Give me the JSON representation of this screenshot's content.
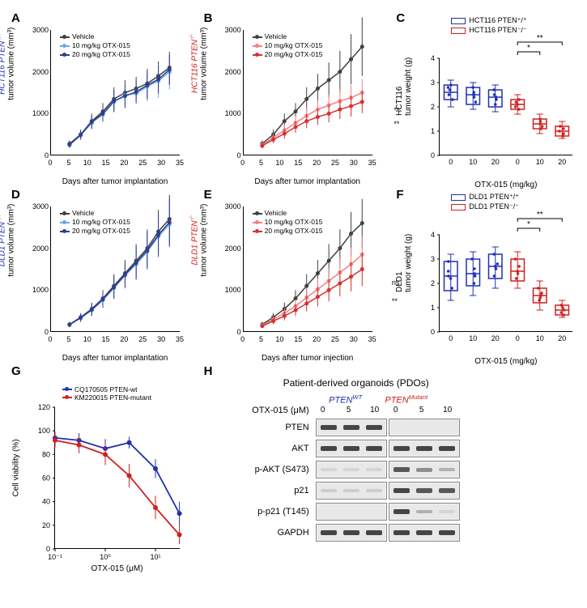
{
  "colors": {
    "vehicle": "#404040",
    "blue_mid": "#6ba8e8",
    "blue_dark": "#2c3e95",
    "red_mid": "#f08080",
    "red_dark": "#d63030",
    "pten_wt": "#2030b0",
    "pten_null": "#d02020"
  },
  "panelA": {
    "label": "A",
    "ylabel_color": "#2030b0",
    "ylabel_part1": "HCT116 PTEN",
    "ylabel_sup": "+/+",
    "ylabel_part2": "tumor volume (mm³)",
    "xlabel": "Days after tumor implantation",
    "xlim": [
      0,
      35
    ],
    "xtick_step": 5,
    "ylim": [
      0,
      3000
    ],
    "ytick_step": 1000,
    "legend": [
      {
        "label": "Vehicle",
        "color": "#404040"
      },
      {
        "label": "10 mg/kg OTX-015",
        "color": "#6ba8e8"
      },
      {
        "label": "20 mg/kg OTX-015",
        "color": "#2c3e95"
      }
    ],
    "series": [
      {
        "color": "#404040",
        "x": [
          5,
          8,
          11,
          14,
          17,
          20,
          23,
          26,
          29,
          32
        ],
        "y": [
          280,
          500,
          820,
          1050,
          1350,
          1500,
          1600,
          1720,
          1900,
          2100
        ],
        "err": [
          80,
          120,
          180,
          200,
          280,
          300,
          280,
          350,
          350,
          380
        ]
      },
      {
        "color": "#6ba8e8",
        "x": [
          5,
          8,
          11,
          14,
          17,
          20,
          23,
          26,
          29,
          32
        ],
        "y": [
          250,
          480,
          780,
          980,
          1280,
          1450,
          1480,
          1650,
          1780,
          2000
        ],
        "err": [
          70,
          100,
          150,
          180,
          250,
          280,
          250,
          350,
          400,
          420
        ]
      },
      {
        "color": "#2c3e95",
        "x": [
          5,
          8,
          11,
          14,
          17,
          20,
          23,
          26,
          29,
          32
        ],
        "y": [
          260,
          490,
          800,
          1000,
          1300,
          1420,
          1520,
          1680,
          1820,
          2050
        ],
        "err": [
          75,
          110,
          160,
          190,
          260,
          290,
          260,
          330,
          340,
          360
        ]
      }
    ]
  },
  "panelB": {
    "label": "B",
    "ylabel_color": "#d02020",
    "ylabel_part1": "HCT116 PTEN",
    "ylabel_sup": "-/-",
    "ylabel_part2": "tumor volume (mm³)",
    "xlabel": "Days after tumor implantation",
    "xlim": [
      0,
      35
    ],
    "xtick_step": 5,
    "ylim": [
      0,
      3000
    ],
    "ytick_step": 1000,
    "legend": [
      {
        "label": "Vehicle",
        "color": "#404040"
      },
      {
        "label": "10 mg/kg OTX-015",
        "color": "#f08080"
      },
      {
        "label": "20 mg/kg OTX-015",
        "color": "#d63030"
      }
    ],
    "series": [
      {
        "color": "#404040",
        "x": [
          5,
          8,
          11,
          14,
          17,
          20,
          23,
          26,
          29,
          32
        ],
        "y": [
          280,
          500,
          820,
          1050,
          1350,
          1600,
          1800,
          2000,
          2300,
          2600
        ],
        "err": [
          80,
          120,
          180,
          200,
          280,
          350,
          420,
          500,
          600,
          700
        ]
      },
      {
        "color": "#f08080",
        "x": [
          5,
          8,
          11,
          14,
          17,
          20,
          23,
          26,
          29,
          32
        ],
        "y": [
          250,
          420,
          600,
          780,
          950,
          1100,
          1200,
          1300,
          1380,
          1500
        ],
        "err": [
          70,
          100,
          140,
          160,
          200,
          220,
          250,
          280,
          300,
          320
        ]
      },
      {
        "color": "#d63030",
        "x": [
          5,
          8,
          11,
          14,
          17,
          20,
          23,
          26,
          29,
          32
        ],
        "y": [
          230,
          380,
          520,
          680,
          820,
          920,
          1000,
          1100,
          1180,
          1280
        ],
        "err": [
          60,
          90,
          120,
          140,
          170,
          190,
          210,
          230,
          250,
          270
        ]
      }
    ],
    "sig": [
      "**",
      "**"
    ]
  },
  "panelC": {
    "label": "C",
    "ylabel": "HCT116\ntumor weight (g)",
    "xlabel": "OTX-015  (mg/kg)",
    "xlabels": [
      "0",
      "10",
      "20",
      "0",
      "10",
      "20"
    ],
    "ylim": [
      0,
      4
    ],
    "ytick_step": 1,
    "legend": [
      {
        "label": "HCT116 PTEN⁺/⁺",
        "color": "#2030b0"
      },
      {
        "label": "HCT116 PTEN⁻/⁻",
        "color": "#d02020"
      }
    ],
    "boxes": [
      {
        "color": "#2030b0",
        "median": 2.6,
        "q1": 2.3,
        "q3": 2.9,
        "min": 2.0,
        "max": 3.1,
        "points": [
          2.5,
          2.7,
          2.8,
          2.3,
          2.9
        ]
      },
      {
        "color": "#2030b0",
        "median": 2.5,
        "q1": 2.1,
        "q3": 2.8,
        "min": 1.9,
        "max": 3.0,
        "points": [
          2.4,
          2.6,
          2.2,
          2.8,
          2.5
        ]
      },
      {
        "color": "#2030b0",
        "median": 2.4,
        "q1": 2.0,
        "q3": 2.7,
        "min": 1.8,
        "max": 2.9,
        "points": [
          2.3,
          2.5,
          2.1,
          2.7,
          2.4
        ]
      },
      {
        "color": "#d02020",
        "median": 2.1,
        "q1": 1.9,
        "q3": 2.3,
        "min": 1.7,
        "max": 2.5,
        "points": [
          2.0,
          2.2,
          1.9,
          2.3,
          2.1
        ]
      },
      {
        "color": "#d02020",
        "median": 1.3,
        "q1": 1.1,
        "q3": 1.5,
        "min": 0.9,
        "max": 1.7,
        "points": [
          1.2,
          1.4,
          1.1,
          1.5,
          1.3
        ]
      },
      {
        "color": "#d02020",
        "median": 1.0,
        "q1": 0.8,
        "q3": 1.2,
        "min": 0.7,
        "max": 1.4,
        "points": [
          0.9,
          1.1,
          0.8,
          1.2,
          1.0
        ]
      }
    ],
    "sig": [
      {
        "label": "*",
        "from": 3,
        "to": 4
      },
      {
        "label": "**",
        "from": 3,
        "to": 5
      }
    ]
  },
  "panelD": {
    "label": "D",
    "ylabel_color": "#2030b0",
    "ylabel_part1": "DLD1 PTEN",
    "ylabel_sup": "+/+",
    "ylabel_part2": "tumor volume (mm³)",
    "xlabel": "Days after tumor implantation",
    "xlim": [
      0,
      35
    ],
    "xtick_step": 5,
    "ylim": [
      0,
      3000
    ],
    "ytick_step": 1000,
    "legend": [
      {
        "label": "Vehicle",
        "color": "#404040"
      },
      {
        "label": "10 mg/kg OTX-015",
        "color": "#6ba8e8"
      },
      {
        "label": "20 mg/kg OTX-015",
        "color": "#2c3e95"
      }
    ],
    "series": [
      {
        "color": "#404040",
        "x": [
          5,
          8,
          11,
          14,
          17,
          20,
          23,
          26,
          29,
          32
        ],
        "y": [
          180,
          350,
          550,
          800,
          1100,
          1400,
          1700,
          2000,
          2400,
          2700
        ],
        "err": [
          60,
          100,
          150,
          200,
          280,
          320,
          400,
          450,
          520,
          580
        ]
      },
      {
        "color": "#6ba8e8",
        "x": [
          5,
          8,
          11,
          14,
          17,
          20,
          23,
          26,
          29,
          32
        ],
        "y": [
          170,
          330,
          520,
          760,
          1050,
          1350,
          1620,
          1920,
          2280,
          2580
        ],
        "err": [
          55,
          95,
          140,
          190,
          270,
          310,
          380,
          430,
          500,
          560
        ]
      },
      {
        "color": "#2c3e95",
        "x": [
          5,
          8,
          11,
          14,
          17,
          20,
          23,
          26,
          29,
          32
        ],
        "y": [
          175,
          340,
          530,
          780,
          1070,
          1370,
          1650,
          1950,
          2320,
          2620
        ],
        "err": [
          58,
          98,
          145,
          195,
          275,
          315,
          390,
          440,
          510,
          570
        ]
      }
    ]
  },
  "panelE": {
    "label": "E",
    "ylabel_color": "#d02020",
    "ylabel_part1": "DLD1 PTEN",
    "ylabel_sup": "-/-",
    "ylabel_part2": "tumor volume (mm³)",
    "xlabel": "Days after tumor injection",
    "xlim": [
      0,
      35
    ],
    "xtick_step": 5,
    "ylim": [
      0,
      3000
    ],
    "ytick_step": 1000,
    "legend": [
      {
        "label": "Vehicle",
        "color": "#404040"
      },
      {
        "label": "10 mg/kg OTX-015",
        "color": "#f08080"
      },
      {
        "label": "20 mg/kg OTX-015",
        "color": "#d63030"
      }
    ],
    "series": [
      {
        "color": "#404040",
        "x": [
          5,
          8,
          11,
          14,
          17,
          20,
          23,
          26,
          29,
          32
        ],
        "y": [
          180,
          350,
          550,
          800,
          1100,
          1400,
          1700,
          2000,
          2350,
          2600
        ],
        "err": [
          60,
          100,
          150,
          200,
          280,
          320,
          400,
          450,
          520,
          580
        ]
      },
      {
        "color": "#f08080",
        "x": [
          5,
          8,
          11,
          14,
          17,
          20,
          23,
          26,
          29,
          32
        ],
        "y": [
          160,
          300,
          450,
          620,
          820,
          1020,
          1220,
          1420,
          1620,
          1850
        ],
        "err": [
          50,
          85,
          120,
          160,
          220,
          260,
          300,
          350,
          400,
          450
        ]
      },
      {
        "color": "#d63030",
        "x": [
          5,
          8,
          11,
          14,
          17,
          20,
          23,
          26,
          29,
          32
        ],
        "y": [
          140,
          260,
          380,
          520,
          680,
          840,
          1000,
          1160,
          1320,
          1500
        ],
        "err": [
          45,
          75,
          105,
          140,
          190,
          230,
          270,
          310,
          350,
          400
        ]
      }
    ],
    "sig": [
      "ns",
      "**"
    ]
  },
  "panelF": {
    "label": "F",
    "ylabel": "DLD1\ntumor weight (g)",
    "xlabel": "OTX-015  (mg/kg)",
    "xlabels": [
      "0",
      "10",
      "20",
      "0",
      "10",
      "20"
    ],
    "ylim": [
      0,
      4
    ],
    "ytick_step": 1,
    "legend": [
      {
        "label": "DLD1 PTEN⁺/⁺",
        "color": "#2030b0"
      },
      {
        "label": "DLD1 PTEN⁻/⁻",
        "color": "#d02020"
      }
    ],
    "boxes": [
      {
        "color": "#2030b0",
        "median": 2.3,
        "q1": 1.7,
        "q3": 2.9,
        "min": 1.3,
        "max": 3.2,
        "points": [
          2.2,
          2.5,
          1.8,
          2.9,
          2.3
        ]
      },
      {
        "color": "#2030b0",
        "median": 2.4,
        "q1": 1.9,
        "q3": 3.0,
        "min": 1.5,
        "max": 3.3,
        "points": [
          2.3,
          2.6,
          2.0,
          3.0,
          2.4
        ]
      },
      {
        "color": "#2030b0",
        "median": 2.7,
        "q1": 2.2,
        "q3": 3.2,
        "min": 1.8,
        "max": 3.5,
        "points": [
          2.6,
          2.8,
          2.3,
          3.2,
          2.7
        ]
      },
      {
        "color": "#d02020",
        "median": 2.5,
        "q1": 2.1,
        "q3": 3.0,
        "min": 1.8,
        "max": 3.3,
        "points": [
          2.4,
          2.7,
          2.2,
          3.0,
          2.5
        ]
      },
      {
        "color": "#d02020",
        "median": 1.5,
        "q1": 1.2,
        "q3": 1.8,
        "min": 0.9,
        "max": 2.1,
        "points": [
          1.4,
          1.6,
          1.3,
          1.8,
          1.5
        ]
      },
      {
        "color": "#d02020",
        "median": 0.9,
        "q1": 0.7,
        "q3": 1.1,
        "min": 0.6,
        "max": 1.3,
        "points": [
          0.8,
          1.0,
          0.7,
          1.1,
          0.9
        ]
      }
    ],
    "sig": [
      {
        "label": "*",
        "from": 3,
        "to": 4
      },
      {
        "label": "**",
        "from": 3,
        "to": 5
      }
    ]
  },
  "panelG": {
    "label": "G",
    "ylabel": "Cell viability (%)",
    "xlabel": "OTX-015 (μM)",
    "xlim_log": [
      -1,
      1.5
    ],
    "ylim": [
      0,
      120
    ],
    "ytick_step": 20,
    "xticks": [
      0.1,
      1,
      10
    ],
    "xtick_labels": [
      "10⁻¹",
      "10⁰",
      "10¹"
    ],
    "legend": [
      {
        "label": "CQ170505 PTEN-wt",
        "color": "#2030b0"
      },
      {
        "label": "KM220015 PTEN-mutant",
        "color": "#d02020"
      }
    ],
    "series": [
      {
        "color": "#2030b0",
        "x": [
          0.1,
          0.3,
          1,
          3,
          10,
          30
        ],
        "y": [
          94,
          92,
          85,
          90,
          68,
          30
        ],
        "err": [
          5,
          6,
          8,
          5,
          8,
          10
        ]
      },
      {
        "color": "#d02020",
        "x": [
          0.1,
          0.3,
          1,
          3,
          10,
          30
        ],
        "y": [
          92,
          88,
          80,
          62,
          35,
          12
        ],
        "err": [
          6,
          7,
          9,
          10,
          10,
          8
        ]
      }
    ]
  },
  "panelH": {
    "label": "H",
    "title": "Patient-derived organoids (PDOs)",
    "header1": "PTEN",
    "header1_sup": "WT",
    "header1_color": "#2030b0",
    "header2": "PTEN",
    "header2_sup": "Mutant",
    "header2_color": "#d02020",
    "conc_label": "OTX-015 (μM)",
    "concs": [
      "0",
      "5",
      "10",
      "0",
      "5",
      "10"
    ],
    "rows": [
      {
        "label": "PTEN",
        "bands": [
          0.9,
          0.9,
          0.9,
          0.0,
          0.0,
          0.0
        ]
      },
      {
        "label": "AKT",
        "bands": [
          0.9,
          0.9,
          0.9,
          0.9,
          0.9,
          0.9
        ]
      },
      {
        "label": "p-AKT (S473)",
        "bands": [
          0.1,
          0.1,
          0.1,
          0.8,
          0.5,
          0.3
        ]
      },
      {
        "label": "p21",
        "bands": [
          0.15,
          0.15,
          0.15,
          0.9,
          0.8,
          0.8
        ]
      },
      {
        "label": "p-p21 (T145)",
        "bands": [
          0.0,
          0.0,
          0.0,
          0.9,
          0.3,
          0.1
        ]
      },
      {
        "label": "GAPDH",
        "bands": [
          0.9,
          0.9,
          0.9,
          0.9,
          0.9,
          0.9
        ]
      }
    ]
  }
}
